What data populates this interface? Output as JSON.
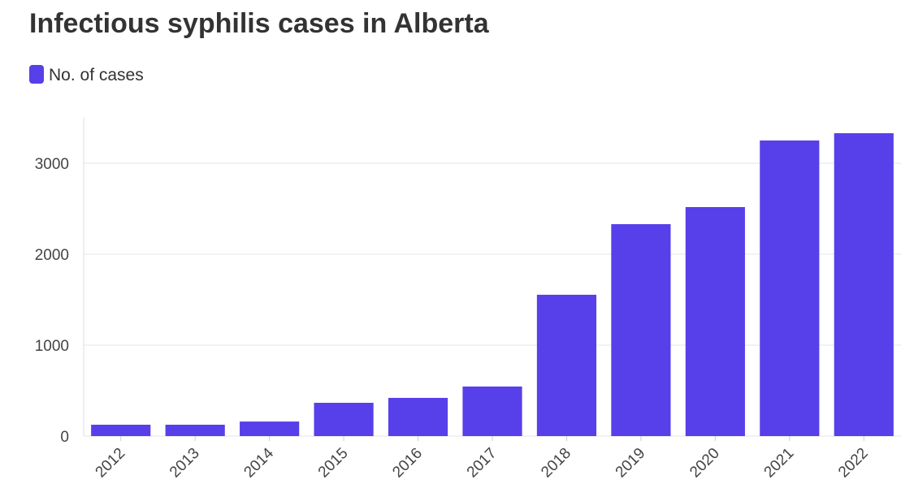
{
  "chart_data": {
    "type": "bar",
    "title": "Infectious syphilis cases in Alberta",
    "categories": [
      "2012",
      "2013",
      "2014",
      "2015",
      "2016",
      "2017",
      "2018",
      "2019",
      "2020",
      "2021",
      "2022"
    ],
    "series": [
      {
        "name": "No. of cases",
        "color": "#573fe9",
        "values": [
          125,
          125,
          160,
          366,
          420,
          545,
          1554,
          2330,
          2518,
          3250,
          3330
        ]
      }
    ],
    "ylim": [
      0,
      3500
    ],
    "yticks": [
      0,
      1000,
      2000,
      3000
    ],
    "grid": true
  }
}
